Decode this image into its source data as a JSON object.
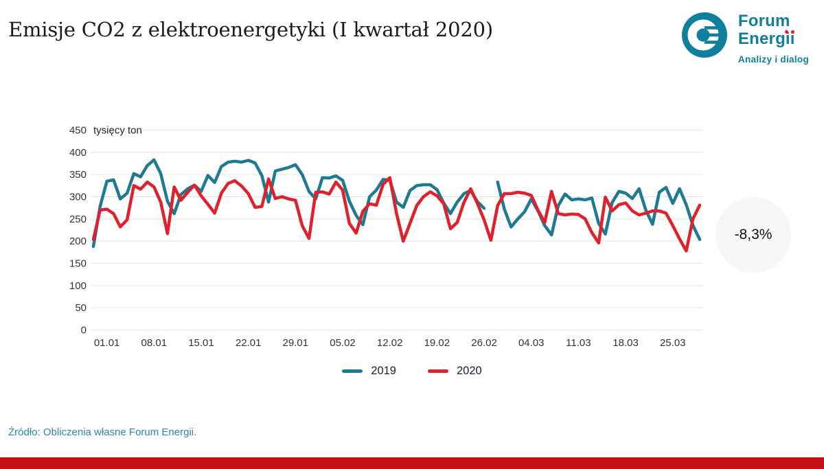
{
  "header": {
    "title": "Emisje CO2 z elektroenergetyki (I kwartał 2020)",
    "logo": {
      "name_line1": "Forum",
      "name_line2": "Energii",
      "tagline": "Analizy i dialog",
      "brand_teal": "#0f7f9e",
      "brand_red": "#e02128"
    }
  },
  "badge": {
    "label": "-8,3%"
  },
  "footer": {
    "source": "Źródło: Obliczenia własne Forum Energii.",
    "bar_color": "#c41117"
  },
  "chart_data": {
    "type": "line",
    "title": "Emisje CO2 z elektroenergetyki (I kwartał 2020)",
    "unit_label": "tysięcy ton",
    "grid": "horizontal",
    "grid_color": "#e3e3e3",
    "axis_label_color": "#333333",
    "ylim": [
      0,
      450
    ],
    "y_ticks": [
      0,
      50,
      100,
      150,
      200,
      250,
      300,
      350,
      400,
      450
    ],
    "x_tick_labels": [
      "01.01",
      "08.01",
      "15.01",
      "22.01",
      "29.01",
      "05.02",
      "12.02",
      "19.02",
      "26.02",
      "04.03",
      "11.03",
      "18.03",
      "25.03"
    ],
    "x_tick_indices": [
      2,
      9,
      16,
      23,
      30,
      37,
      44,
      51,
      58,
      65,
      72,
      79,
      86
    ],
    "legend_position": "bottom",
    "series": [
      {
        "name": "2019",
        "color": "#1e7a92",
        "values": [
          188,
          278,
          335,
          338,
          295,
          308,
          352,
          345,
          370,
          383,
          352,
          290,
          262,
          305,
          318,
          326,
          312,
          348,
          332,
          368,
          378,
          380,
          378,
          382,
          376,
          348,
          288,
          358,
          362,
          366,
          372,
          350,
          312,
          295,
          343,
          342,
          347,
          337,
          290,
          258,
          237,
          300,
          315,
          339,
          337,
          288,
          276,
          314,
          325,
          327,
          327,
          316,
          286,
          262,
          288,
          307,
          314,
          289,
          274,
          null,
          333,
          272,
          232,
          250,
          266,
          295,
          268,
          235,
          214,
          280,
          306,
          293,
          295,
          293,
          297,
          240,
          216,
          287,
          312,
          308,
          296,
          318,
          270,
          238,
          310,
          321,
          285,
          318,
          282,
          235,
          204
        ]
      },
      {
        "name": "2020",
        "color": "#e0202a",
        "values": [
          204,
          270,
          272,
          262,
          232,
          248,
          325,
          317,
          333,
          322,
          288,
          217,
          322,
          292,
          310,
          326,
          302,
          283,
          263,
          308,
          330,
          336,
          324,
          307,
          276,
          278,
          340,
          296,
          300,
          295,
          292,
          235,
          206,
          310,
          311,
          306,
          333,
          315,
          240,
          218,
          267,
          284,
          281,
          328,
          343,
          262,
          200,
          240,
          280,
          300,
          311,
          302,
          284,
          228,
          242,
          287,
          318,
          285,
          248,
          202,
          280,
          307,
          307,
          310,
          308,
          303,
          270,
          242,
          312,
          262,
          259,
          261,
          260,
          250,
          219,
          196,
          299,
          268,
          282,
          286,
          268,
          259,
          263,
          268,
          268,
          263,
          235,
          205,
          178,
          250,
          281
        ]
      }
    ]
  }
}
